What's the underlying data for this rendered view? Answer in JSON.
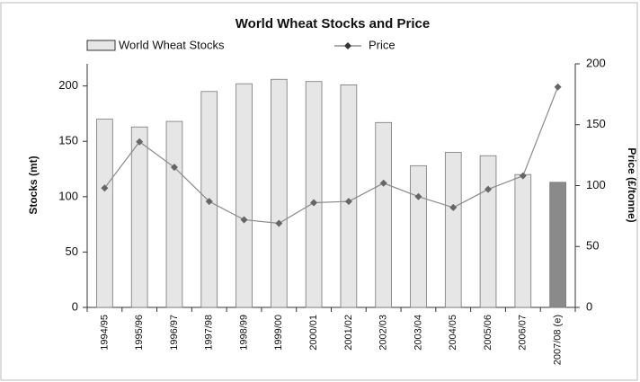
{
  "chart_data": {
    "type": "bar_line",
    "title": "World Wheat Stocks and Price",
    "y_label": "Stocks (mt)",
    "y2_label": "Price (£/tonne)",
    "categories": [
      "1994/95",
      "1995/96",
      "1996/97",
      "1997/98",
      "1998/99",
      "1999/00",
      "2000/01",
      "2001/02",
      "2002/03",
      "2003/04",
      "2004/05",
      "2005/06",
      "2006/07",
      "2007/08 (e)"
    ],
    "series": [
      {
        "name": "World Wheat Stocks",
        "type": "bar",
        "axis": "y",
        "color": "#e6e6e6",
        "colors": [
          "#e6e6e6",
          "#e6e6e6",
          "#e6e6e6",
          "#e6e6e6",
          "#e6e6e6",
          "#e6e6e6",
          "#e6e6e6",
          "#e6e6e6",
          "#e6e6e6",
          "#e6e6e6",
          "#e6e6e6",
          "#e6e6e6",
          "#e6e6e6",
          "#8a8a8a"
        ],
        "values": [
          170,
          163,
          168,
          195,
          202,
          206,
          204,
          201,
          167,
          128,
          140,
          137,
          120,
          113
        ]
      },
      {
        "name": "Price",
        "type": "line",
        "axis": "y2",
        "color": "#8a8a8a",
        "values": [
          98,
          136,
          115,
          87,
          72,
          69,
          86,
          87,
          102,
          91,
          82,
          97,
          108,
          181
        ]
      }
    ],
    "ylim": [
      0,
      220
    ],
    "yticks": [
      0,
      50,
      100,
      150,
      200
    ],
    "y2lim": [
      0,
      200
    ],
    "y2ticks": [
      0,
      50,
      100,
      150,
      200
    ],
    "legend": "top"
  }
}
